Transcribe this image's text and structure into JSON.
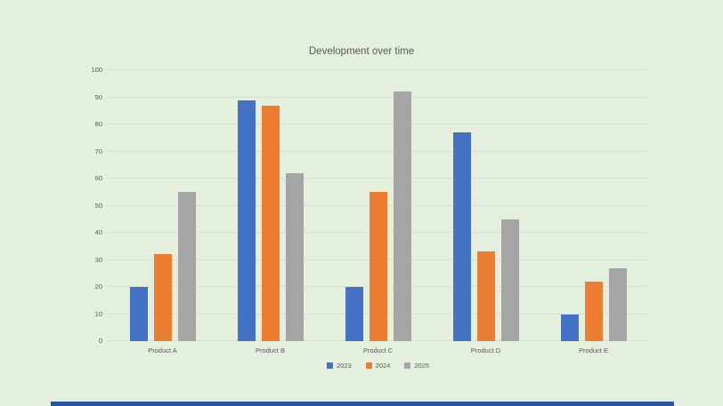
{
  "page": {
    "background_color": "#e4efdd",
    "accent_bar_color": "#2b579a"
  },
  "chart_data": {
    "type": "bar",
    "title": "Development over time",
    "categories": [
      "Product A",
      "Product B",
      "Product C",
      "Product D",
      "Product E"
    ],
    "series": [
      {
        "name": "2023",
        "color": "#4472c4",
        "values": [
          20,
          89,
          20,
          77,
          10
        ]
      },
      {
        "name": "2024",
        "color": "#ed7d31",
        "values": [
          32,
          87,
          55,
          33,
          22
        ]
      },
      {
        "name": "2025",
        "color": "#a5a5a5",
        "values": [
          55,
          62,
          92,
          45,
          27
        ]
      }
    ],
    "xlabel": "",
    "ylabel": "",
    "ylim": [
      0,
      100
    ],
    "yticks": [
      0,
      10,
      20,
      30,
      40,
      50,
      60,
      70,
      80,
      90,
      100
    ],
    "grid": true,
    "gridline_color": "#d6e0cc",
    "legend_position": "bottom",
    "text_color": "#595959"
  }
}
